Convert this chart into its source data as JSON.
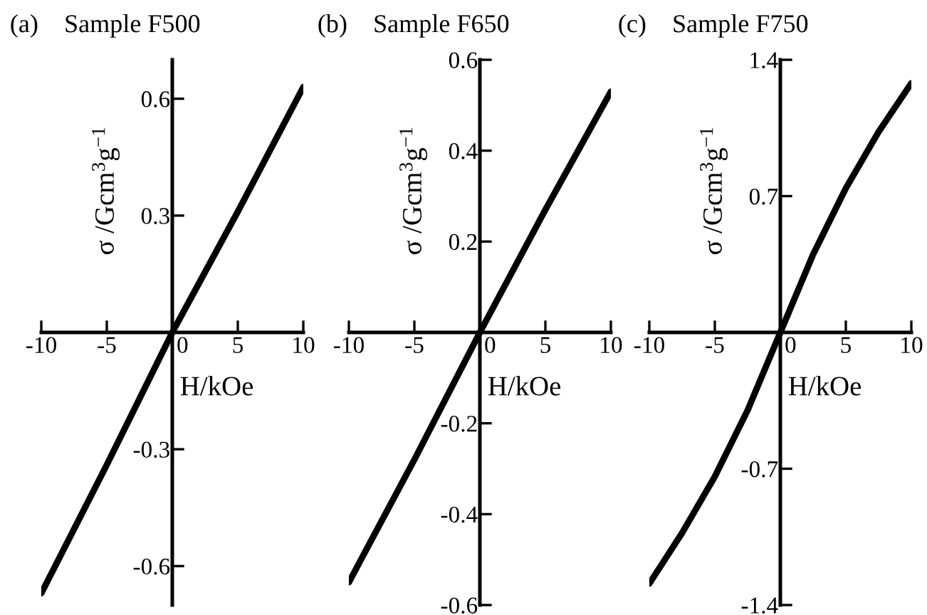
{
  "chart_data": [
    {
      "type": "line",
      "title": "(a)    Sample F500",
      "xlabel": "H/kOe",
      "ylabel": "σ /Gcm$^{3}$g$^{−1}$",
      "xlim": [
        -10,
        10
      ],
      "ylim": [
        -0.7,
        0.7
      ],
      "xticks": [
        -10,
        -5,
        0,
        5,
        10
      ],
      "yticks": [
        -0.6,
        -0.3,
        0.3,
        0.6
      ],
      "grid": false,
      "legend": false,
      "marker": "none",
      "line_style": "solid",
      "series": [
        {
          "color": "#000000",
          "x": [
            -10,
            -5,
            0,
            5,
            10
          ],
          "values": [
            -0.67,
            -0.34,
            0,
            0.31,
            0.63
          ]
        }
      ]
    },
    {
      "type": "line",
      "title": "(b)    Sample F650",
      "xlabel": "H/kOe",
      "ylabel": "σ /Gcm$^{3}$g$^{−1}$",
      "xlim": [
        -10,
        10
      ],
      "ylim": [
        -0.6,
        0.6
      ],
      "xticks": [
        -10,
        -5,
        0,
        5,
        10
      ],
      "yticks": [
        -0.6,
        -0.4,
        -0.2,
        0.2,
        0.4,
        0.6
      ],
      "grid": false,
      "legend": false,
      "marker": "none",
      "line_style": "solid",
      "series": [
        {
          "color": "#000000",
          "x": [
            -10,
            -5,
            0,
            5,
            10
          ],
          "values": [
            -0.55,
            -0.28,
            0,
            0.27,
            0.53
          ]
        }
      ]
    },
    {
      "type": "line",
      "title": "(c)    Sample F750",
      "xlabel": "H/kOe",
      "ylabel": "σ /Gcm$^{3}$g$^{−1}$",
      "xlim": [
        -10,
        10
      ],
      "ylim": [
        -1.4,
        1.4
      ],
      "xticks": [
        -10,
        -5,
        0,
        5,
        10
      ],
      "yticks": [
        -1.4,
        -0.7,
        0.7,
        1.4
      ],
      "grid": false,
      "legend": false,
      "marker": "none",
      "line_style": "solid",
      "series": [
        {
          "color": "#000000",
          "x": [
            -10,
            -7.5,
            -5,
            -2.5,
            0,
            2.5,
            5,
            7.5,
            10
          ],
          "values": [
            -1.29,
            -1.03,
            -0.74,
            -0.4,
            0,
            0.4,
            0.74,
            1.03,
            1.28
          ]
        }
      ]
    }
  ]
}
